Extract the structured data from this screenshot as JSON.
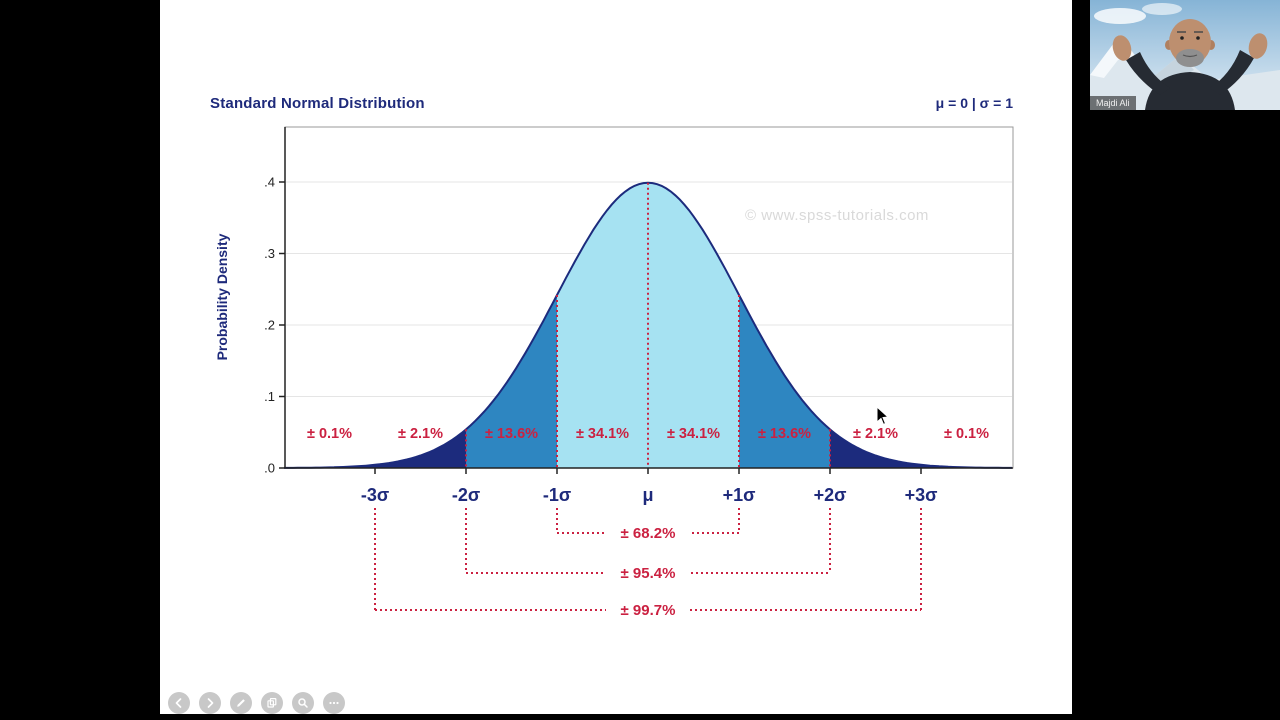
{
  "meeting": {
    "participant_name": "Majdi Ali"
  },
  "toolbar": {
    "buttons": [
      {
        "name": "back",
        "icon": "chevron-left-icon"
      },
      {
        "name": "forward",
        "icon": "chevron-right-icon"
      },
      {
        "name": "annotate",
        "icon": "pen-icon"
      },
      {
        "name": "copy",
        "icon": "copy-icon"
      },
      {
        "name": "zoom",
        "icon": "magnifier-icon"
      },
      {
        "name": "more",
        "icon": "ellipsis-icon"
      }
    ]
  },
  "chart_data": {
    "type": "area",
    "distribution": "normal",
    "title": "Standard Normal Distribution",
    "params_label": "μ = 0 | σ = 1",
    "ylabel": "Probability Density",
    "xlabel": "",
    "watermark": "© www.spss-tutorials.com",
    "mu": 0,
    "sigma": 1,
    "x_range_sigma": [
      -4,
      4
    ],
    "ylim": [
      0,
      0.42
    ],
    "grid": true,
    "y_ticks": [
      {
        "value": 0.4,
        "label": ".4"
      },
      {
        "value": 0.3,
        "label": ".3"
      },
      {
        "value": 0.2,
        "label": ".2"
      },
      {
        "value": 0.1,
        "label": ".1"
      },
      {
        "value": 0.0,
        "label": ".0"
      }
    ],
    "x_ticks": [
      {
        "sigma": -3,
        "label": "-3σ"
      },
      {
        "sigma": -2,
        "label": "-2σ"
      },
      {
        "sigma": -1,
        "label": "-1σ"
      },
      {
        "sigma": 0,
        "label": "μ"
      },
      {
        "sigma": 1,
        "label": "+1σ"
      },
      {
        "sigma": 2,
        "label": "+2σ"
      },
      {
        "sigma": 3,
        "label": "+3σ"
      }
    ],
    "regions": [
      {
        "from": -4,
        "to": -3,
        "percent": 0.1,
        "label": "± 0.1%",
        "color": "#1c2b7d"
      },
      {
        "from": -3,
        "to": -2,
        "percent": 2.1,
        "label": "± 2.1%",
        "color": "#1c2b7d"
      },
      {
        "from": -2,
        "to": -1,
        "percent": 13.6,
        "label": "± 13.6%",
        "color": "#2e86c1"
      },
      {
        "from": -1,
        "to": 0,
        "percent": 34.1,
        "label": "± 34.1%",
        "color": "#a6e2f2"
      },
      {
        "from": 0,
        "to": 1,
        "percent": 34.1,
        "label": "± 34.1%",
        "color": "#a6e2f2"
      },
      {
        "from": 1,
        "to": 2,
        "percent": 13.6,
        "label": "± 13.6%",
        "color": "#2e86c1"
      },
      {
        "from": 2,
        "to": 3,
        "percent": 2.1,
        "label": "± 2.1%",
        "color": "#1c2b7d"
      },
      {
        "from": 3,
        "to": 4,
        "percent": 0.1,
        "label": "± 0.1%",
        "color": "#1c2b7d"
      }
    ],
    "guide_lines_sigma": [
      -2,
      -1,
      0,
      1,
      2
    ],
    "brackets": [
      {
        "from": -1,
        "to": 1,
        "percent": 68.2,
        "label": "± 68.2%"
      },
      {
        "from": -2,
        "to": 2,
        "percent": 95.4,
        "label": "± 95.4%"
      },
      {
        "from": -3,
        "to": 3,
        "percent": 99.7,
        "label": "± 99.7%"
      }
    ],
    "colors": {
      "curve": "#1c2b7d",
      "fill_outer": "#1c2b7d",
      "fill_mid": "#2e86c1",
      "fill_center": "#a6e2f2",
      "accent_red": "#cb2141",
      "navy_text": "#1e2a7b",
      "grid": "#e5e5e5",
      "axis": "#222222",
      "watermark": "#d9d9d9"
    }
  }
}
